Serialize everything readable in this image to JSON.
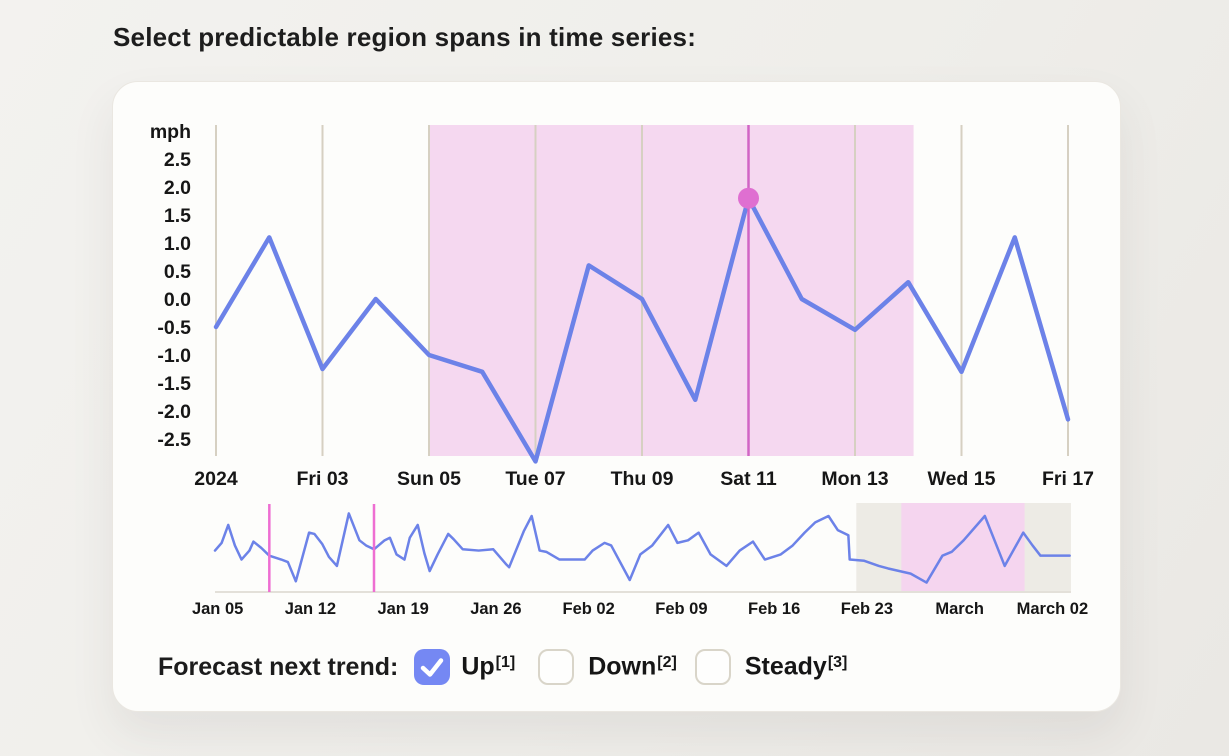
{
  "title": "Select predictable region spans in time series:",
  "colors": {
    "line_blue": "#6c82e8",
    "selection_region_fill": "#f5d8f0",
    "selection_line": "#d165c5",
    "selection_dot": "#df6fd1",
    "overview_marker_pink": "#ee6ed2",
    "overview_gray_fill": "#edebe5",
    "overview_pink_fill": "#f5d5ef",
    "gridline": "#d6d0c2",
    "baseline": "#e3e0d9",
    "checkbox_blue": "#7588f3",
    "axis_text": "#161616"
  },
  "chart_data": {
    "type": "line",
    "ylabel": "mph",
    "main": {
      "y_ticks": [
        "2.5",
        "2.0",
        "1.5",
        "1.0",
        "0.5",
        "0.0",
        "-0.5",
        "-1.0",
        "-1.5",
        "-2.0",
        "-2.5"
      ],
      "y_tick_values": [
        2.5,
        2.0,
        1.5,
        1.0,
        0.5,
        0.0,
        -0.5,
        -1.0,
        -1.5,
        -2.0,
        -2.5
      ],
      "x_tick_labels": [
        "2024",
        "Fri 03",
        "Sun 05",
        "Tue 07",
        "Thu 09",
        "Sat 11",
        "Mon 13",
        "Wed 15",
        "Fri 17"
      ],
      "values": [
        -0.5,
        1.1,
        -1.25,
        0.0,
        -1.0,
        -1.3,
        -2.9,
        0.6,
        0.0,
        -1.8,
        1.8,
        0.0,
        -0.55,
        0.3,
        -1.3,
        1.1,
        -2.15
      ],
      "selected_region": {
        "start_index": 4.0,
        "end_index": 13.1,
        "start_label": "Sun 05"
      },
      "selected_point": {
        "index": 10,
        "x_label": "Sat 11",
        "value": 1.8
      }
    },
    "overview": {
      "x_tick_labels": [
        "Jan 05",
        "Jan 12",
        "Jan 19",
        "Jan 26",
        "Feb 02",
        "Feb 09",
        "Feb 16",
        "Feb 23",
        "March",
        "March 02"
      ],
      "points": [
        [
          0,
          -0.2
        ],
        [
          0.5,
          0.4
        ],
        [
          1,
          1.8
        ],
        [
          1.5,
          0.2
        ],
        [
          2,
          -0.9
        ],
        [
          2.6,
          -0.2
        ],
        [
          2.9,
          0.5
        ],
        [
          3.5,
          0
        ],
        [
          4.1,
          -0.6
        ],
        [
          5,
          -0.9
        ],
        [
          5.5,
          -1.1
        ],
        [
          6.1,
          -2.6
        ],
        [
          7.1,
          1.2
        ],
        [
          7.5,
          1.1
        ],
        [
          8.1,
          0.3
        ],
        [
          8.6,
          -0.7
        ],
        [
          9.2,
          -1.4
        ],
        [
          10.1,
          2.7
        ],
        [
          10.9,
          0.6
        ],
        [
          11.4,
          0.2
        ],
        [
          12,
          -0.1
        ],
        [
          12.8,
          0.6
        ],
        [
          13.2,
          0.8
        ],
        [
          13.7,
          -0.5
        ],
        [
          14.3,
          -0.9
        ],
        [
          14.7,
          0.8
        ],
        [
          15.3,
          1.8
        ],
        [
          15.8,
          -0.4
        ],
        [
          16.2,
          -1.8
        ],
        [
          16.8,
          -0.5
        ],
        [
          17.6,
          1.1
        ],
        [
          18,
          0.7
        ],
        [
          18.7,
          -0.1
        ],
        [
          19.9,
          -0.2
        ],
        [
          21,
          -0.1
        ],
        [
          22,
          -1.3
        ],
        [
          22.2,
          -1.5
        ],
        [
          23.3,
          1.3
        ],
        [
          23.9,
          2.5
        ],
        [
          24.5,
          -0.2
        ],
        [
          25,
          -0.3
        ],
        [
          26,
          -0.9
        ],
        [
          27.9,
          -0.9
        ],
        [
          28.5,
          -0.2
        ],
        [
          29.4,
          0.4
        ],
        [
          29.9,
          0.2
        ],
        [
          31.3,
          -2.5
        ],
        [
          32.1,
          -0.5
        ],
        [
          33,
          0.2
        ],
        [
          34.2,
          1.8
        ],
        [
          34.9,
          0.4
        ],
        [
          35.7,
          0.6
        ],
        [
          36.5,
          1.2
        ],
        [
          37.4,
          -0.5
        ],
        [
          38.6,
          -1.4
        ],
        [
          39.6,
          -0.2
        ],
        [
          40.6,
          0.5
        ],
        [
          41.5,
          -0.9
        ],
        [
          42.7,
          -0.5
        ],
        [
          43.6,
          0.2
        ],
        [
          44.5,
          1.2
        ],
        [
          45.3,
          2.0
        ],
        [
          46.3,
          2.5
        ],
        [
          47,
          1.4
        ],
        [
          47.8,
          1.0
        ],
        [
          47.9,
          -0.9
        ],
        [
          49,
          -1.0
        ],
        [
          50.1,
          -1.4
        ],
        [
          50.8,
          -1.6
        ],
        [
          52.5,
          -2.0
        ],
        [
          53.7,
          -2.7
        ],
        [
          54.9,
          -0.6
        ],
        [
          55.6,
          -0.3
        ],
        [
          56.5,
          0.6
        ],
        [
          58.1,
          2.5
        ],
        [
          59.6,
          -1.4
        ],
        [
          61,
          1.2
        ],
        [
          61.7,
          0.2
        ],
        [
          62.3,
          -0.6
        ],
        [
          64.5,
          -0.6
        ]
      ],
      "marker_days": [
        4.1,
        12.0
      ],
      "gray_region_days": [
        48.4,
        64.6
      ],
      "pink_region_days": [
        51.8,
        61.1
      ]
    }
  },
  "forecast": {
    "label": "Forecast next trend:",
    "options": [
      {
        "label": "Up",
        "sup": "[1]",
        "checked": true
      },
      {
        "label": "Down",
        "sup": "[2]",
        "checked": false
      },
      {
        "label": "Steady",
        "sup": "[3]",
        "checked": false
      }
    ]
  }
}
